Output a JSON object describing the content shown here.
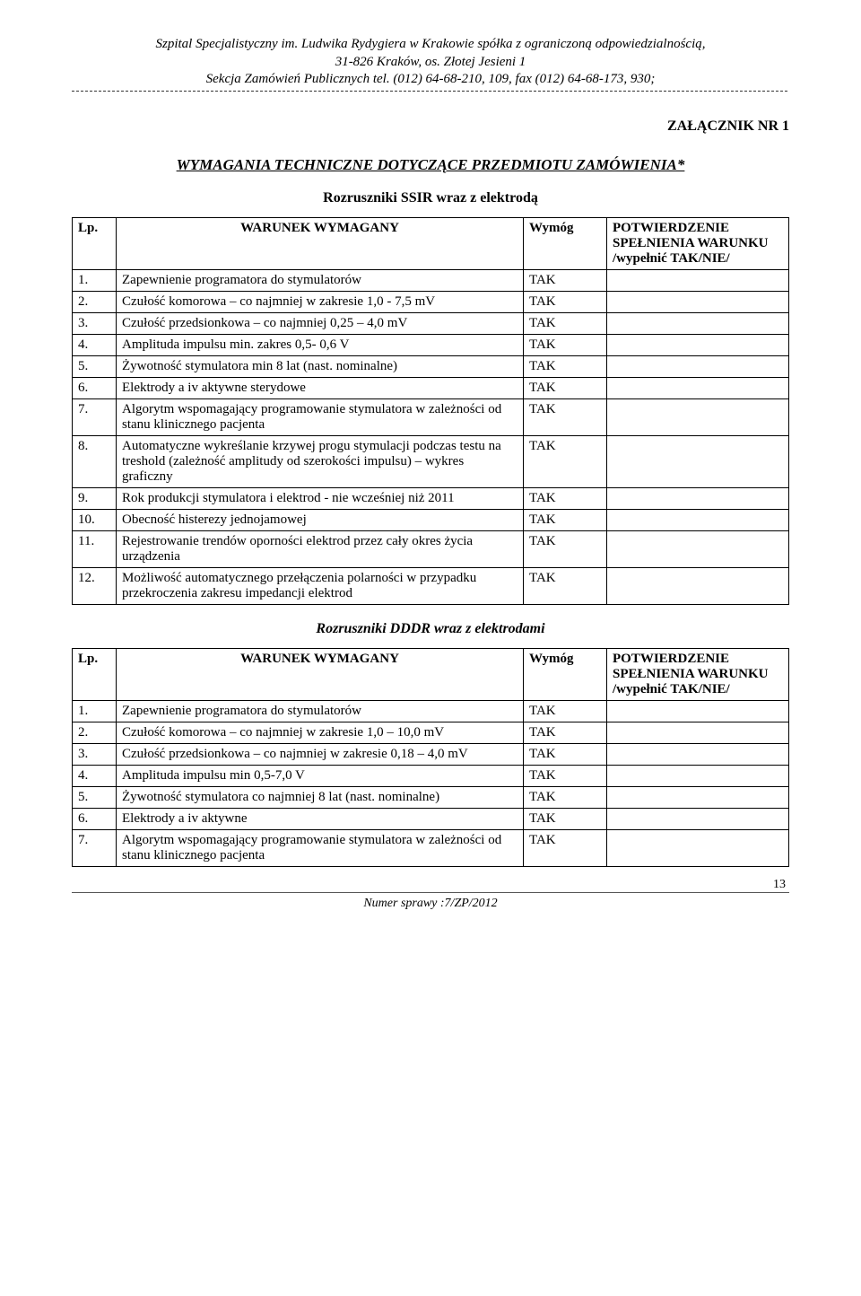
{
  "header": {
    "line1": "Szpital Specjalistyczny im. Ludwika Rydygiera w Krakowie spółka z ograniczoną odpowiedzialnością,",
    "line2": "31-826 Kraków, os. Złotej Jesieni 1",
    "line3": "Sekcja Zamówień Publicznych tel. (012) 64-68-210, 109,  fax (012) 64-68-173, 930;"
  },
  "attachment_label": "ZAŁĄCZNIK NR 1",
  "main_title": "WYMAGANIA TECHNICZNE DOTYCZĄCE PRZEDMIOTU ZAMÓWIENIA*",
  "table_header": {
    "lp": "Lp.",
    "req": "WARUNEK WYMAGANY",
    "wym": "Wymóg",
    "potw_l1": "POTWIERDZENIE",
    "potw_l2": "SPEŁNIENIA WARUNKU",
    "potw_l3": "/wypełnić TAK/NIE/"
  },
  "section1": {
    "subtitle": "Rozruszniki SSIR wraz z elektrodą",
    "rows": [
      {
        "n": "1.",
        "txt": "Zapewnienie programatora do stymulatorów",
        "w": "TAK"
      },
      {
        "n": "2.",
        "txt": "Czułość komorowa – co najmniej w zakresie 1,0  - 7,5 mV",
        "w": "TAK"
      },
      {
        "n": "3.",
        "txt": "Czułość przedsionkowa – co najmniej 0,25 – 4,0 mV",
        "w": "TAK"
      },
      {
        "n": "4.",
        "txt": "Amplituda impulsu min. zakres 0,5- 0,6 V",
        "w": "TAK"
      },
      {
        "n": "5.",
        "txt": "Żywotność stymulatora min 8 lat (nast. nominalne)",
        "w": "TAK"
      },
      {
        "n": "6.",
        "txt": "Elektrody a iv aktywne  sterydowe",
        "w": "TAK"
      },
      {
        "n": "7.",
        "txt": "Algorytm wspomagający programowanie stymulatora w zależności od stanu klinicznego pacjenta",
        "w": "TAK"
      },
      {
        "n": "8.",
        "txt": "Automatyczne wykreślanie krzywej progu stymulacji podczas testu na treshold (zależność amplitudy od szerokości impulsu) – wykres graficzny",
        "w": "TAK"
      },
      {
        "n": "9.",
        "txt": "Rok produkcji stymulatora i elektrod - nie wcześniej niż 2011",
        "w": "TAK"
      },
      {
        "n": "10.",
        "txt": "Obecność histerezy jednojamowej",
        "w": "TAK"
      },
      {
        "n": "11.",
        "txt": "Rejestrowanie trendów oporności elektrod przez cały okres życia urządzenia",
        "w": "TAK"
      },
      {
        "n": "12.",
        "txt": "Możliwość automatycznego przełączenia polarności w przypadku przekroczenia zakresu impedancji elektrod",
        "w": "TAK"
      }
    ]
  },
  "section2": {
    "subtitle": "Rozruszniki DDDR wraz z elektrodami",
    "rows": [
      {
        "n": "1.",
        "txt": "Zapewnienie programatora do stymulatorów",
        "w": "TAK"
      },
      {
        "n": "2.",
        "txt": "Czułość komorowa – co najmniej w zakresie 1,0 – 10,0 mV",
        "w": "TAK"
      },
      {
        "n": "3.",
        "txt": "Czułość przedsionkowa – co najmniej w zakresie 0,18 – 4,0 mV",
        "w": "TAK"
      },
      {
        "n": "4.",
        "txt": "Amplituda impulsu min 0,5-7,0 V",
        "w": "TAK"
      },
      {
        "n": "5.",
        "txt": "Żywotność stymulatora co najmniej 8 lat (nast. nominalne)",
        "w": "TAK"
      },
      {
        "n": "6.",
        "txt": "Elektrody a iv aktywne",
        "w": "TAK"
      },
      {
        "n": "7.",
        "txt": "Algorytm wspomagający programowanie stymulatora w zależności od stanu klinicznego pacjenta",
        "w": "TAK"
      }
    ]
  },
  "footer": {
    "text": "Numer sprawy :7/ZP/2012",
    "page": "13"
  }
}
